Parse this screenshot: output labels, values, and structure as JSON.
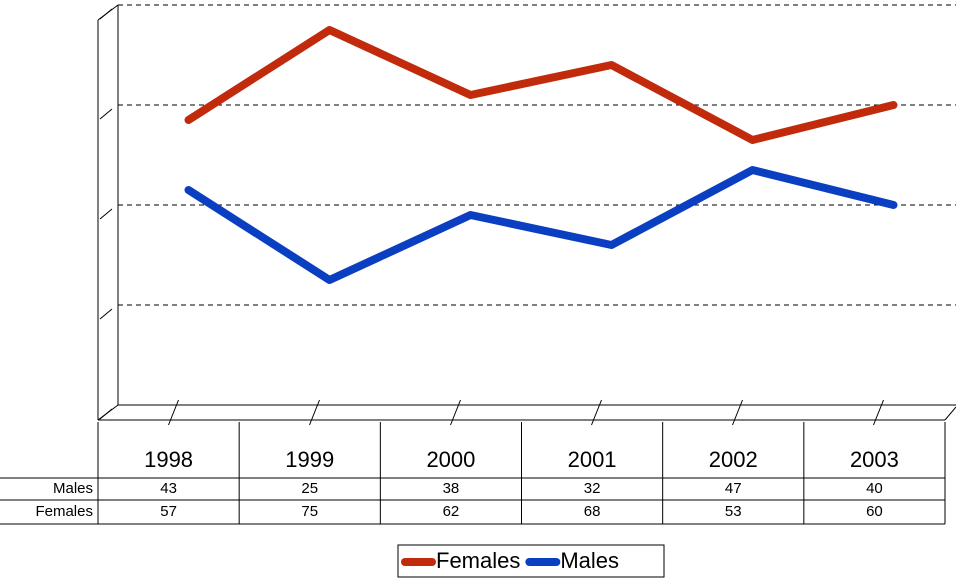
{
  "chart_data": {
    "type": "line",
    "categories": [
      "1998",
      "1999",
      "2000",
      "2001",
      "2002",
      "2003"
    ],
    "series": [
      {
        "name": "Males",
        "color": "#0b3fc2",
        "values": [
          43,
          25,
          38,
          32,
          47,
          40
        ]
      },
      {
        "name": "Females",
        "color": "#c22a0c",
        "values": [
          57,
          75,
          62,
          68,
          53,
          60
        ]
      }
    ],
    "ylim": [
      0,
      80
    ],
    "yticks": [
      0,
      20,
      40,
      60,
      80
    ],
    "grid": true
  }
}
